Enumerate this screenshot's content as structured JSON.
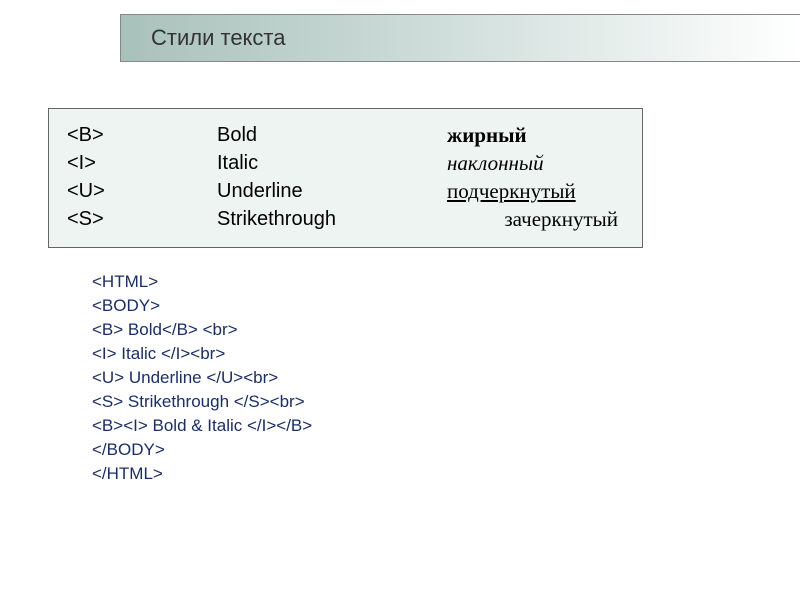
{
  "header": {
    "title": "Стили текста"
  },
  "table": {
    "rows": [
      {
        "tag": "<B>",
        "eng": "Bold",
        "rus": "жирный",
        "style": "bold"
      },
      {
        "tag": "<I>",
        "eng": "Italic",
        "rus": "наклонный",
        "style": "italic"
      },
      {
        "tag": "<U>",
        "eng": "Underline",
        "rus": "подчеркнутый",
        "style": "underline"
      },
      {
        "tag": "<S>",
        "eng": "Strikethrough",
        "rus": "зачеркнутый",
        "style": "strike"
      }
    ]
  },
  "code": {
    "lines": [
      "<HTML>",
      "<BODY>",
      "<B> Bold</B> <br>",
      "<I> Italic </I><br>",
      "<U> Underline </U><br>",
      "<S> Strikethrough </S><br>",
      "<B><I> Bold & Italic </I></B>",
      "</BODY>",
      "</HTML>"
    ]
  },
  "colors": {
    "header_gradient_start": "#a9c1bb",
    "header_gradient_end": "#ffffff",
    "table_bg": "#edf4f2",
    "border": "#666666",
    "code_text": "#1a2e66"
  }
}
